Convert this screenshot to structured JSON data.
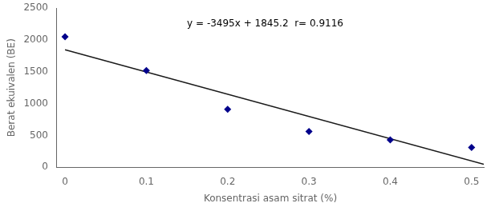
{
  "chart_data": {
    "type": "scatter",
    "xlabel": "Konsentrasi asam sitrat (%)",
    "ylabel": "Berat ekuivalen (BE)",
    "series": [
      {
        "type": "line",
        "color": "#1a1a1a",
        "line_style": "solid",
        "x": [
          0.0,
          0.515
        ],
        "values": [
          1845.2,
          45.275
        ]
      },
      {
        "type": "scatter",
        "color": "#00008B",
        "marker": "diamond",
        "x": [
          0,
          0.1,
          0.2,
          0.3,
          0.4,
          0.5
        ],
        "values": [
          2050,
          1520,
          910,
          560,
          430,
          310
        ]
      }
    ],
    "annotations": [
      {
        "text": "y = -3495x + 1845.2  r= 0.9116",
        "x": 0.15,
        "y": 2250
      }
    ],
    "xlim": [
      -0.01,
      0.515
    ],
    "ylim": [
      0,
      2500
    ],
    "xticks": [
      0,
      0.1,
      0.2,
      0.3,
      0.4,
      0.5
    ],
    "yticks": [
      0,
      500,
      1000,
      1500,
      2000,
      2500
    ],
    "grid": false
  }
}
